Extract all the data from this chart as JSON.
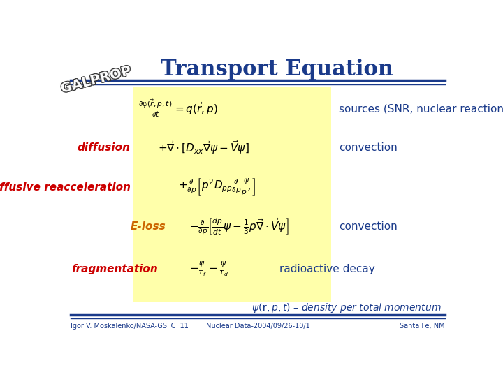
{
  "title": "Transport Equation",
  "title_color": "#1a3a8a",
  "title_fontsize": 22,
  "bg_color": "#ffffff",
  "eq_box_color": "#ffffaa",
  "line1_eq": "$\\frac{\\partial \\psi(\\vec{r},p,t)}{\\partial t} = q(\\vec{r},p)$",
  "line1_label": "sources (SNR, nuclear reactions…)",
  "line1_label_color": "#1a3a8a",
  "line2_tag": "diffusion",
  "line2_tag_color": "#cc0000",
  "line2_eq": "$+\\vec{\\nabla}\\cdot[D_{xx}\\vec{\\nabla}\\psi - \\vec{V}\\psi]$",
  "line2_label": "convection",
  "line2_label_color": "#1a3a8a",
  "line3_tag": "diffusive reacceleration",
  "line3_tag_color": "#cc0000",
  "line3_eq": "$+\\frac{\\partial}{\\partial p}\\left[p^2 D_{pp}\\frac{\\partial}{\\partial p}\\frac{\\psi}{p^2}\\right]$",
  "line4_tag": "E-loss",
  "line4_tag_color": "#cc6600",
  "line4_eq": "$-\\frac{\\partial}{\\partial p}\\left[\\frac{dp}{dt}\\psi - \\frac{1}{3}p\\vec{\\nabla}\\cdot\\vec{V}\\psi\\right]$",
  "line4_label": "convection",
  "line4_label_color": "#1a3a8a",
  "line5_tag": "fragmentation",
  "line5_tag_color": "#cc0000",
  "line5_eq": "$-\\frac{\\psi}{\\tau_f} - \\frac{\\psi}{\\tau_d}$",
  "line5_label": "radioactive decay",
  "line5_label_color": "#1a3a8a",
  "footer_text": "$\\psi(\\mathbf{r},p,t)$ – density per total momentum",
  "footer_color": "#1a3a8a",
  "bottom_left": "Igor V. Moskalenko/NASA-GSFC  11",
  "bottom_center": "Nuclear Data-2004/09/26-10/1",
  "bottom_right": "Santa Fe, NM",
  "bottom_color": "#1a3a8a",
  "separator_color": "#1a3a8a",
  "bottom_sep_color": "#1a3a8a"
}
